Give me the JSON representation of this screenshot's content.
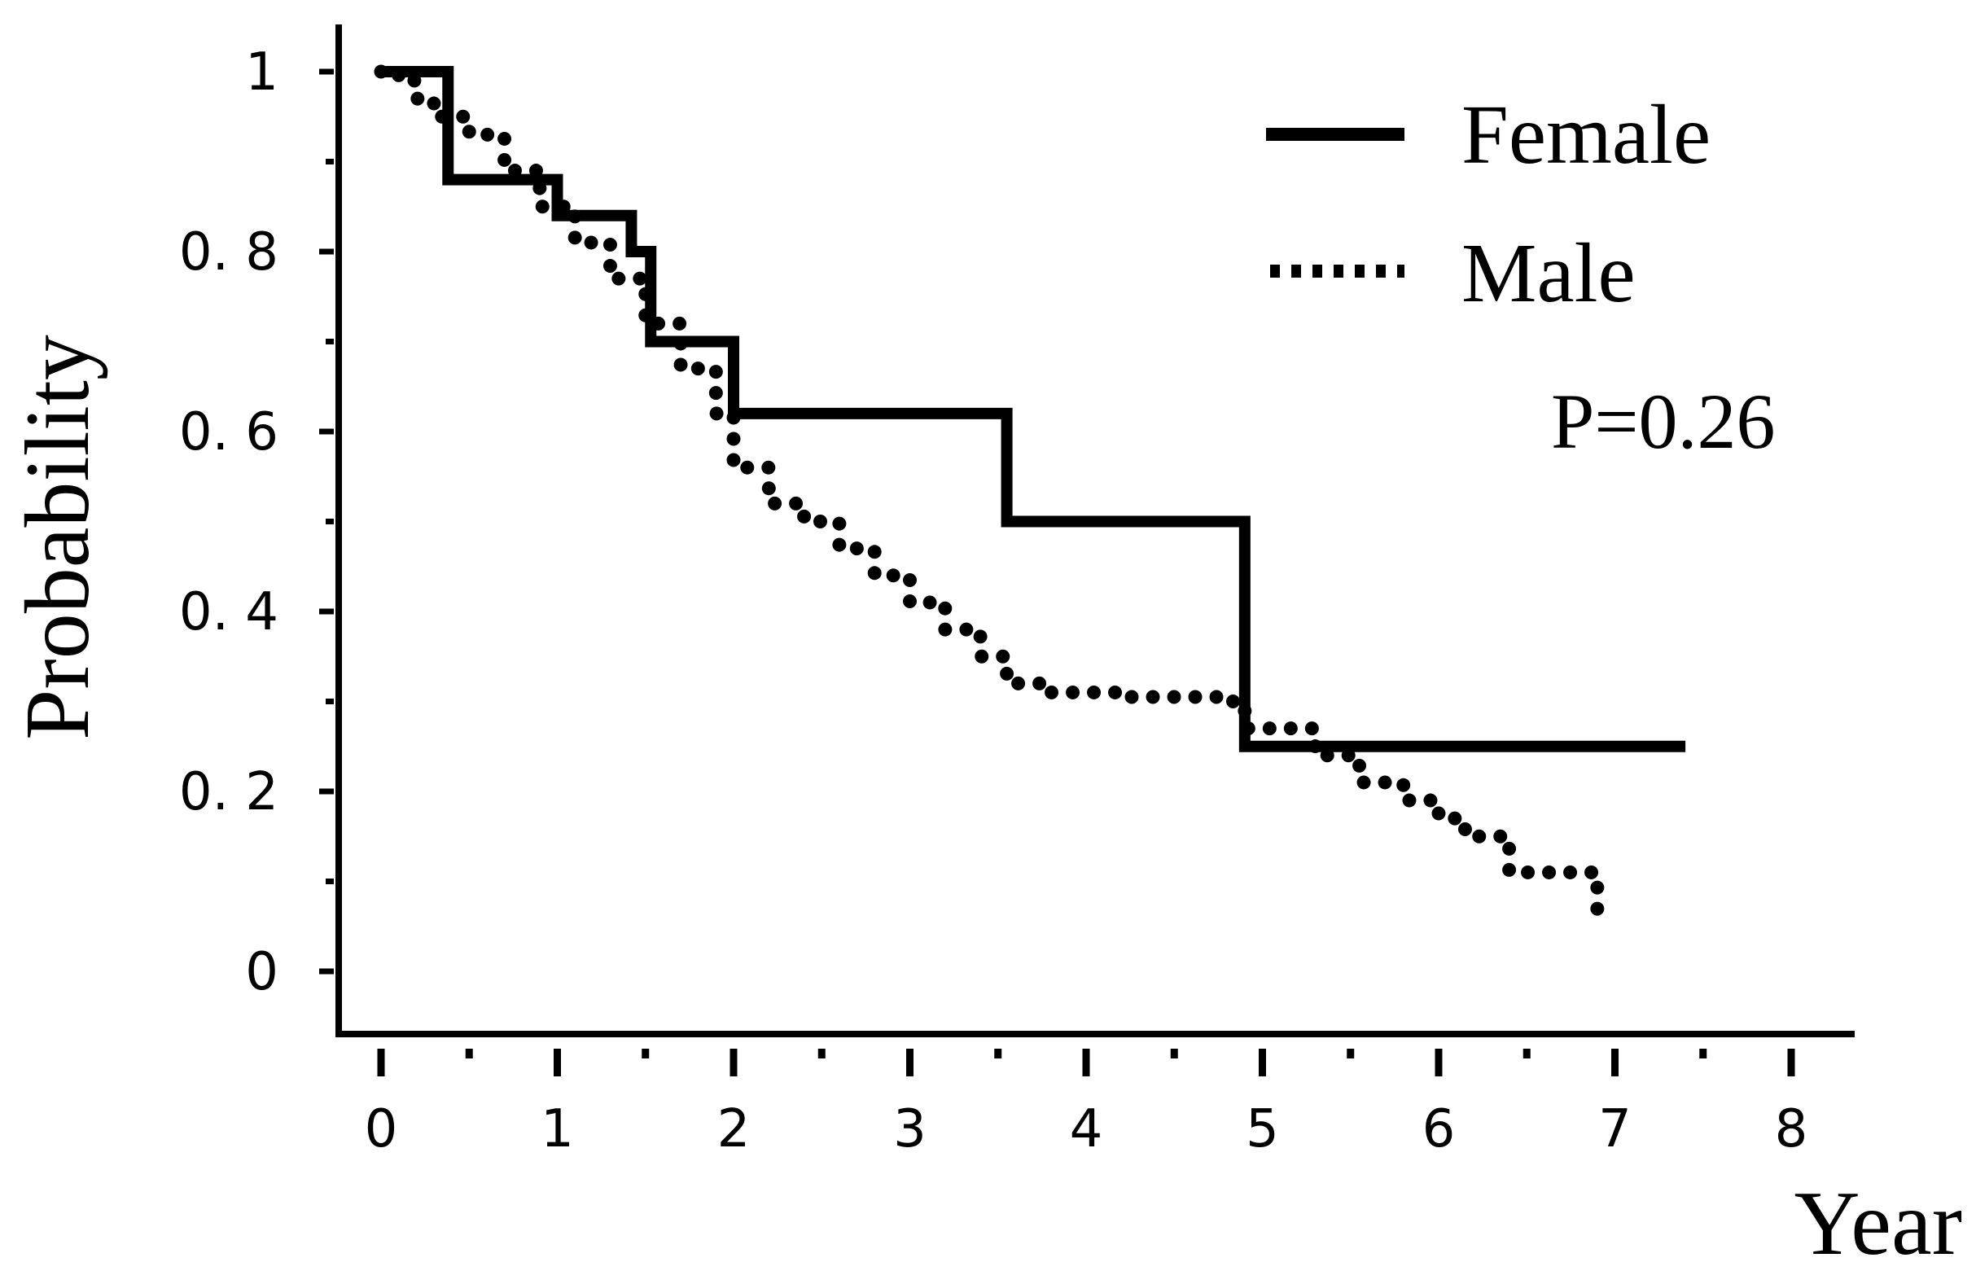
{
  "chart_data": {
    "type": "line",
    "step": true,
    "title": "",
    "xlabel": "Year",
    "ylabel": "Probability",
    "xlim": [
      0,
      8
    ],
    "ylim": [
      0,
      1
    ],
    "x_ticks": [
      "0",
      "1",
      "2",
      "3",
      "4",
      "5",
      "6",
      "7",
      "8"
    ],
    "y_ticks": [
      "0",
      "0. 2",
      "0. 4",
      "0. 6",
      "0. 8",
      "1"
    ],
    "legend_position": "top-right",
    "annotation": "P=0.26",
    "series": [
      {
        "name": "Female",
        "style": "solid",
        "color": "#000000",
        "x": [
          0,
          0.3,
          0.38,
          1.0,
          1.42,
          1.53,
          2.0,
          3.55,
          4.9,
          7.4
        ],
        "y": [
          1.0,
          1.0,
          0.88,
          0.84,
          0.8,
          0.7,
          0.62,
          0.5,
          0.25,
          0.25
        ]
      },
      {
        "name": "Male",
        "style": "dotted",
        "color": "#000000",
        "x": [
          0,
          0.1,
          0.2,
          0.3,
          0.5,
          0.7,
          0.9,
          1.1,
          1.3,
          1.5,
          1.7,
          1.9,
          2.0,
          2.2,
          2.4,
          2.6,
          2.8,
          3.0,
          3.2,
          3.4,
          3.55,
          3.8,
          4.2,
          4.5,
          4.8,
          4.9,
          5.05,
          5.3,
          5.55,
          5.8,
          6.0,
          6.15,
          6.4,
          6.65,
          6.9
        ],
        "y": [
          1.0,
          0.99,
          0.97,
          0.95,
          0.93,
          0.89,
          0.85,
          0.81,
          0.77,
          0.72,
          0.67,
          0.62,
          0.56,
          0.52,
          0.5,
          0.47,
          0.44,
          0.41,
          0.38,
          0.35,
          0.32,
          0.31,
          0.305,
          0.305,
          0.3,
          0.27,
          0.27,
          0.24,
          0.21,
          0.19,
          0.17,
          0.15,
          0.11,
          0.11,
          0.06
        ]
      }
    ]
  }
}
